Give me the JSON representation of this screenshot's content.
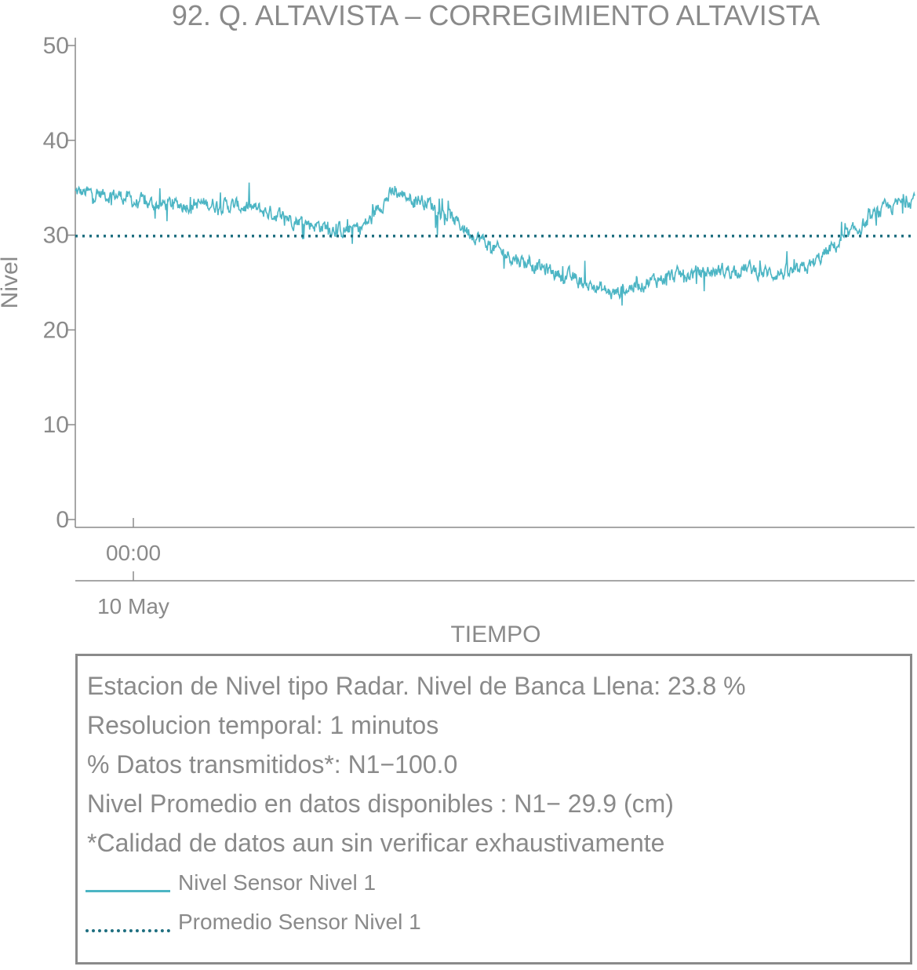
{
  "chart_data": {
    "type": "line",
    "title": "92. Q. ALTAVISTA – CORREGIMIENTO ALTAVISTA",
    "ylabel": "Nivel",
    "xlabel": "TIEMPO",
    "ylim": [
      0,
      50
    ],
    "y_ticks": [
      "0",
      "10",
      "20",
      "30",
      "40",
      "50"
    ],
    "x_tick_time": "00:00",
    "x_tick_date": "10 May",
    "grid": false,
    "series": [
      {
        "name": "Nivel Sensor Nivel 1",
        "color": "#4cb5c4",
        "style": "solid",
        "x_fraction": [
          0.0,
          0.05,
          0.06,
          0.07,
          0.1,
          0.16,
          0.2,
          0.24,
          0.28,
          0.32,
          0.34,
          0.355,
          0.36,
          0.38,
          0.42,
          0.46,
          0.5,
          0.54,
          0.58,
          0.62,
          0.64,
          0.66,
          0.7,
          0.74,
          0.78,
          0.8,
          0.82,
          0.86,
          0.88,
          0.9,
          0.93,
          0.96,
          1.0
        ],
        "values": [
          34.5,
          34.2,
          34.0,
          33.5,
          33.2,
          33.3,
          33.0,
          32.2,
          31.2,
          30.5,
          30.8,
          31.8,
          33.0,
          34.5,
          33.5,
          31.0,
          28.5,
          27.0,
          25.8,
          24.5,
          23.8,
          24.5,
          25.5,
          26.0,
          26.3,
          26.5,
          26.0,
          26.0,
          27.0,
          28.5,
          30.5,
          32.5,
          34.0
        ]
      },
      {
        "name": "Promedio Sensor Nivel 1",
        "color": "#1f6f80",
        "style": "dotted",
        "values": [
          29.9
        ]
      }
    ]
  },
  "info": {
    "line1": "Estacion de Nivel tipo Radar. Nivel de Banca Llena: 23.8 %",
    "line2": "Resolucion temporal: 1 minutos",
    "line3": "% Datos transmitidos*: N1−100.0",
    "line4": "Nivel Promedio en datos disponibles : N1− 29.9 (cm)",
    "line5": "*Calidad de datos aun sin verificar exhaustivamente"
  },
  "legend": {
    "item1": "Nivel Sensor Nivel 1",
    "item2": "Promedio Sensor Nivel 1"
  }
}
